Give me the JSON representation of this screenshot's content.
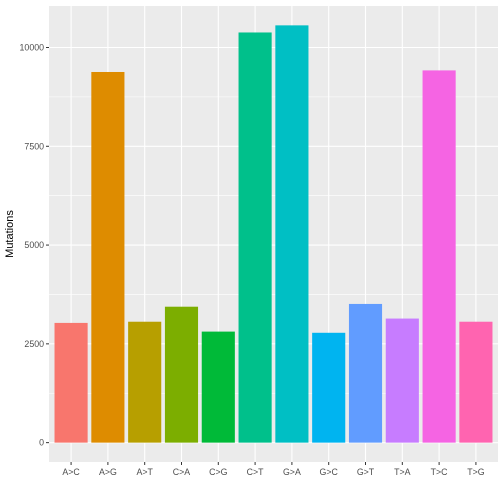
{
  "chart_data": {
    "type": "bar",
    "categories": [
      "A>C",
      "A>G",
      "A>T",
      "C>A",
      "C>G",
      "C>T",
      "G>A",
      "G>C",
      "G>T",
      "T>A",
      "T>C",
      "T>G"
    ],
    "values": [
      3030,
      9380,
      3060,
      3440,
      2810,
      10380,
      10560,
      2780,
      3510,
      3140,
      9420,
      3060
    ],
    "colors": [
      "#F8766D",
      "#DE8C00",
      "#B79F00",
      "#7CAE00",
      "#00BA38",
      "#00C08B",
      "#00BFC4",
      "#00B4F0",
      "#619CFF",
      "#C77CFF",
      "#F564E3",
      "#FF64B0"
    ],
    "title": "",
    "xlabel": "",
    "ylabel": "Mutations",
    "ylim": [
      -490,
      11050
    ],
    "yticks": [
      0,
      2500,
      5000,
      7500,
      10000
    ],
    "ytick_labels": [
      "0",
      "2500",
      "5000",
      "7500",
      "10000"
    ],
    "grid": true,
    "panel_background": "#EBEBEB",
    "grid_color": "#FFFFFF",
    "legend": "none"
  }
}
